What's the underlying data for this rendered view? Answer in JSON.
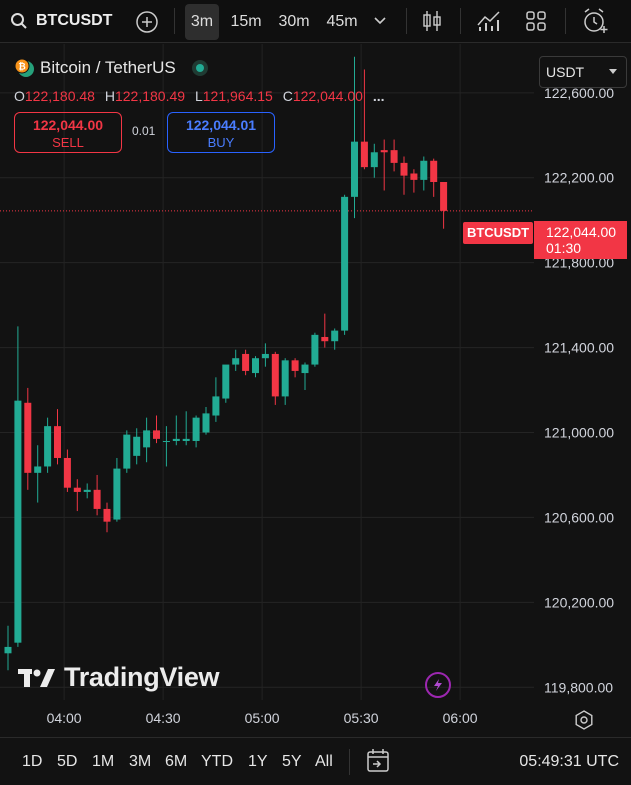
{
  "toolbar": {
    "symbol": "BTCUSDT",
    "intervals": [
      "3m",
      "15m",
      "30m",
      "45m"
    ],
    "active_interval": "3m",
    "icons": [
      "search-icon",
      "add-compare-icon",
      "chevron-down-icon",
      "candles-icon",
      "indicators-icon",
      "layout-grid-icon",
      "alert-clock-icon"
    ]
  },
  "legend": {
    "title": "Bitcoin / TetherUS",
    "coin_icon": "bitcoin-tether-icon",
    "status": "market-open",
    "ohlc": [
      {
        "label": "O",
        "value": "122,180.48"
      },
      {
        "label": "H",
        "value": "122,180.49"
      },
      {
        "label": "L",
        "value": "121,964.15"
      },
      {
        "label": "C",
        "value": "122,044.00"
      }
    ],
    "more": "..."
  },
  "trade": {
    "sell_price": "122,044.00",
    "sell_label": "SELL",
    "spread": "0.01",
    "buy_price": "122,044.01",
    "buy_label": "BUY"
  },
  "quote_currency": "USDT",
  "price_axis": {
    "labels": [
      "122,600.00",
      "122,200.00",
      "121,800.00",
      "121,400.00",
      "121,000.00",
      "120,600.00",
      "120,200.00",
      "119,800.00"
    ]
  },
  "last_price": {
    "symbol_tag": "BTCUSDT",
    "price": "122,044.00",
    "countdown": "01:30"
  },
  "time_axis": {
    "labels": [
      "04:00",
      "04:30",
      "05:00",
      "05:30",
      "06:00"
    ]
  },
  "watermark": "TradingView",
  "bottom": {
    "ranges": [
      "1D",
      "5D",
      "1M",
      "3M",
      "6M",
      "YTD",
      "1Y",
      "5Y",
      "All"
    ],
    "clock": "05:49:31 UTC"
  },
  "colors": {
    "up": "#22ab94",
    "down": "#f23645",
    "background": "#121212",
    "grid": "#2a2a2a",
    "buy": "#2962ff"
  },
  "chart_data": {
    "type": "candlestick",
    "interval": "3m",
    "y_range": [
      119740,
      122830
    ],
    "candles": [
      {
        "o": 119960,
        "h": 120090,
        "l": 119880,
        "c": 119990
      },
      {
        "o": 120010,
        "h": 121500,
        "l": 119990,
        "c": 121150
      },
      {
        "o": 121140,
        "h": 121210,
        "l": 120730,
        "c": 120810
      },
      {
        "o": 120810,
        "h": 120940,
        "l": 120670,
        "c": 120840
      },
      {
        "o": 120840,
        "h": 121070,
        "l": 120810,
        "c": 121030
      },
      {
        "o": 121030,
        "h": 121110,
        "l": 120850,
        "c": 120880
      },
      {
        "o": 120880,
        "h": 120920,
        "l": 120720,
        "c": 120740
      },
      {
        "o": 120740,
        "h": 120780,
        "l": 120630,
        "c": 120720
      },
      {
        "o": 120720,
        "h": 120760,
        "l": 120690,
        "c": 120730
      },
      {
        "o": 120730,
        "h": 120800,
        "l": 120610,
        "c": 120640
      },
      {
        "o": 120640,
        "h": 120670,
        "l": 120530,
        "c": 120580
      },
      {
        "o": 120590,
        "h": 120880,
        "l": 120580,
        "c": 120830
      },
      {
        "o": 120830,
        "h": 121010,
        "l": 120810,
        "c": 120990
      },
      {
        "o": 120890,
        "h": 121020,
        "l": 120850,
        "c": 120980
      },
      {
        "o": 120930,
        "h": 121070,
        "l": 120860,
        "c": 121010
      },
      {
        "o": 121010,
        "h": 121080,
        "l": 120950,
        "c": 120970
      },
      {
        "o": 120960,
        "h": 121030,
        "l": 120840,
        "c": 120960
      },
      {
        "o": 120960,
        "h": 121080,
        "l": 120940,
        "c": 120970
      },
      {
        "o": 120960,
        "h": 121100,
        "l": 120940,
        "c": 120970
      },
      {
        "o": 120960,
        "h": 121080,
        "l": 120930,
        "c": 121070
      },
      {
        "o": 121000,
        "h": 121120,
        "l": 120990,
        "c": 121090
      },
      {
        "o": 121080,
        "h": 121260,
        "l": 121050,
        "c": 121170
      },
      {
        "o": 121160,
        "h": 121300,
        "l": 121140,
        "c": 121320
      },
      {
        "o": 121320,
        "h": 121390,
        "l": 121290,
        "c": 121350
      },
      {
        "o": 121370,
        "h": 121390,
        "l": 121270,
        "c": 121290
      },
      {
        "o": 121280,
        "h": 121360,
        "l": 121260,
        "c": 121350
      },
      {
        "o": 121350,
        "h": 121420,
        "l": 121310,
        "c": 121370
      },
      {
        "o": 121370,
        "h": 121380,
        "l": 121130,
        "c": 121170
      },
      {
        "o": 121170,
        "h": 121350,
        "l": 121130,
        "c": 121340
      },
      {
        "o": 121340,
        "h": 121350,
        "l": 121260,
        "c": 121290
      },
      {
        "o": 121280,
        "h": 121330,
        "l": 121200,
        "c": 121320
      },
      {
        "o": 121320,
        "h": 121470,
        "l": 121310,
        "c": 121460
      },
      {
        "o": 121450,
        "h": 121560,
        "l": 121400,
        "c": 121430
      },
      {
        "o": 121430,
        "h": 121490,
        "l": 121390,
        "c": 121480
      },
      {
        "o": 121480,
        "h": 122120,
        "l": 121460,
        "c": 122110
      },
      {
        "o": 122110,
        "h": 122770,
        "l": 122010,
        "c": 122370
      },
      {
        "o": 122370,
        "h": 122710,
        "l": 122240,
        "c": 122250
      },
      {
        "o": 122250,
        "h": 122360,
        "l": 122200,
        "c": 122320
      },
      {
        "o": 122330,
        "h": 122380,
        "l": 122140,
        "c": 122320
      },
      {
        "o": 122330,
        "h": 122380,
        "l": 122230,
        "c": 122270
      },
      {
        "o": 122270,
        "h": 122300,
        "l": 122120,
        "c": 122210
      },
      {
        "o": 122220,
        "h": 122240,
        "l": 122130,
        "c": 122190
      },
      {
        "o": 122190,
        "h": 122300,
        "l": 122140,
        "c": 122280
      },
      {
        "o": 122280,
        "h": 122290,
        "l": 122110,
        "c": 122180
      },
      {
        "o": 122180,
        "h": 122180,
        "l": 121960,
        "c": 122044
      }
    ]
  }
}
